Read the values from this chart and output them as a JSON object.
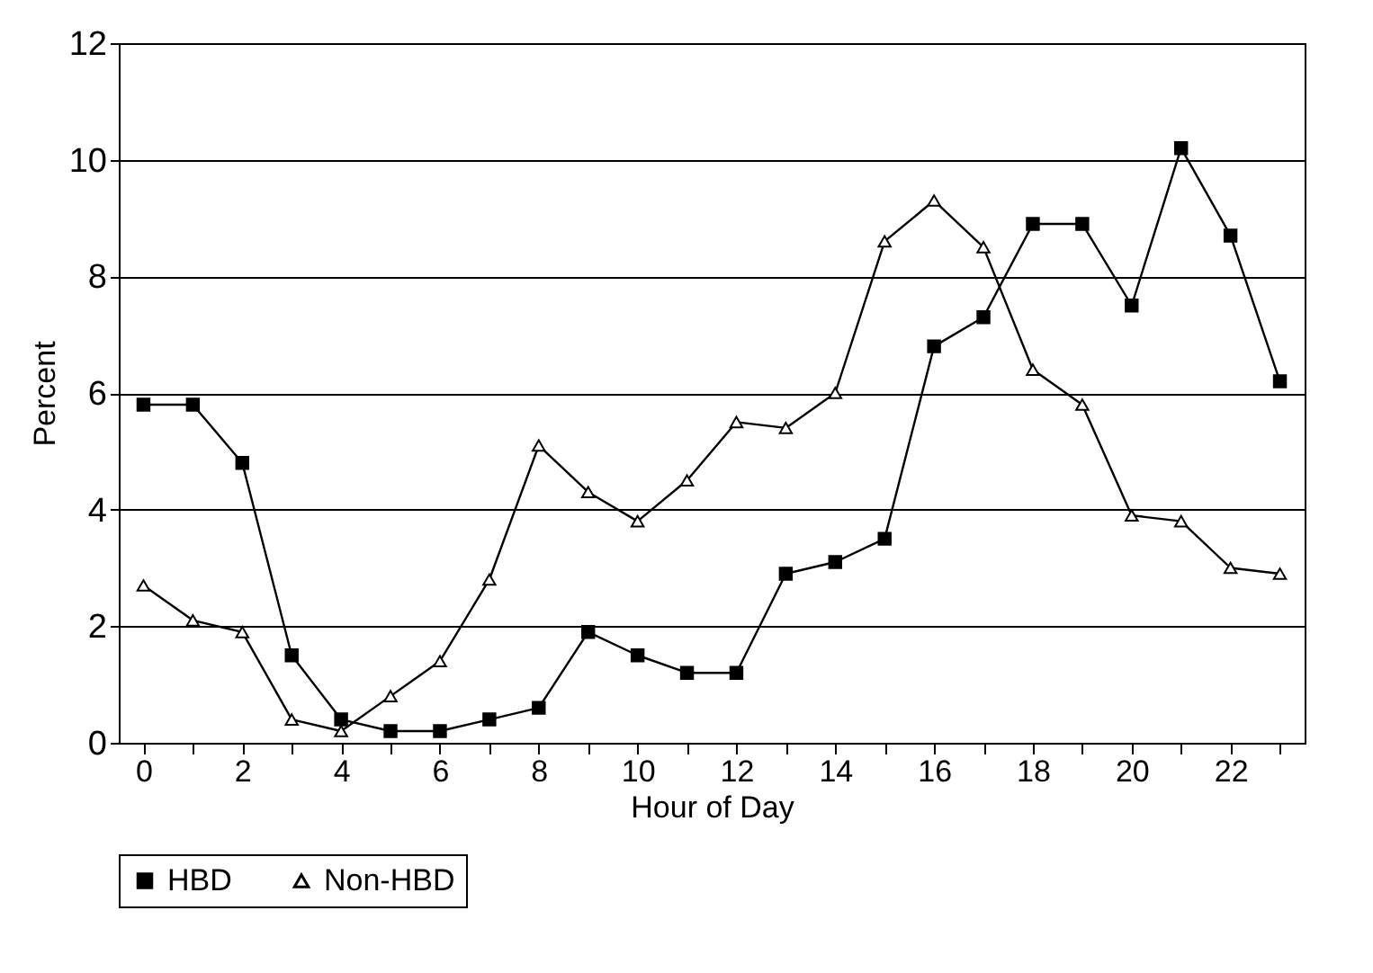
{
  "chart_data": {
    "type": "line",
    "xlabel": "Hour of Day",
    "ylabel": "Percent",
    "x": [
      0,
      1,
      2,
      3,
      4,
      5,
      6,
      7,
      8,
      9,
      10,
      11,
      12,
      13,
      14,
      15,
      16,
      17,
      18,
      19,
      20,
      21,
      22,
      23
    ],
    "series": [
      {
        "name": "HBD",
        "color": "#000000",
        "marker": "square",
        "values": [
          5.8,
          5.8,
          4.8,
          1.5,
          0.4,
          0.2,
          0.2,
          0.4,
          0.6,
          1.9,
          1.5,
          1.2,
          1.2,
          2.9,
          3.1,
          3.5,
          6.8,
          7.3,
          8.9,
          8.9,
          7.5,
          10.2,
          8.7,
          6.2
        ]
      },
      {
        "name": "Non-HBD",
        "color": "#000000",
        "marker": "triangle",
        "values": [
          2.7,
          2.1,
          1.9,
          0.4,
          0.2,
          0.8,
          1.4,
          2.8,
          5.1,
          4.3,
          3.8,
          4.5,
          5.5,
          5.4,
          6.0,
          8.6,
          9.3,
          8.5,
          6.4,
          5.8,
          3.9,
          3.8,
          3.0,
          2.9
        ]
      }
    ],
    "xlim": [
      -0.5,
      23.5
    ],
    "xticks": [
      0,
      {
        "value": 1,
        "label": null
      },
      2,
      {
        "value": 3,
        "label": null
      },
      4,
      {
        "value": 5,
        "label": null
      },
      6,
      {
        "value": 7,
        "label": null
      },
      8,
      {
        "value": 9,
        "label": null
      },
      10,
      {
        "value": 11,
        "label": null
      },
      12,
      {
        "value": 13,
        "label": null
      },
      14,
      {
        "value": 15,
        "label": null
      },
      16,
      {
        "value": 17,
        "label": null
      },
      18,
      {
        "value": 19,
        "label": null
      },
      20,
      {
        "value": 21,
        "label": null
      },
      22,
      {
        "value": 23,
        "label": null
      }
    ],
    "ylim": [
      0,
      12
    ],
    "yticks": [
      0,
      2,
      4,
      6,
      8,
      10,
      12
    ],
    "grid": "y",
    "legend": "bottom",
    "line_style": "solid"
  }
}
